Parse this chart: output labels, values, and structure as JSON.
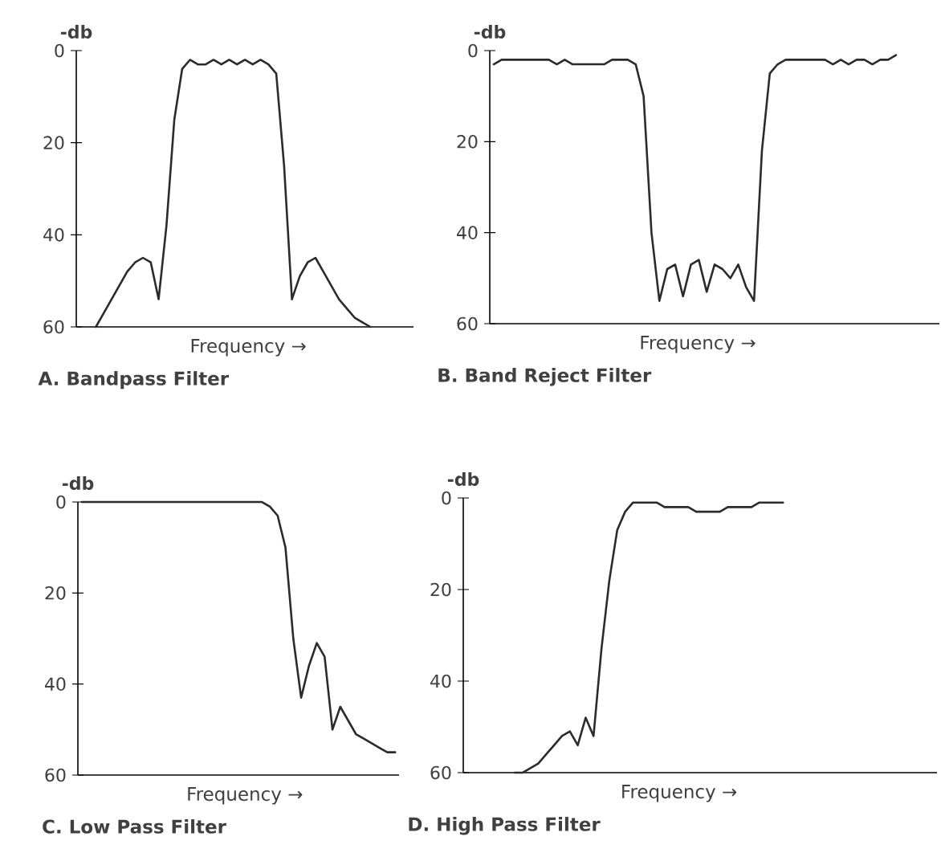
{
  "chart_data": [
    {
      "type": "line",
      "title": "A. Bandpass Filter",
      "xlabel": "Frequency →",
      "ylabel": "-db",
      "ylim": [
        60,
        0
      ],
      "yticks": [
        0,
        20,
        40,
        60
      ],
      "tick_labels": "y",
      "categories": [
        null,
        null,
        null,
        null,
        null,
        null,
        null,
        null,
        null,
        null,
        null,
        null,
        null,
        null,
        null,
        null,
        null,
        null,
        null,
        null,
        null,
        null,
        null,
        null,
        null,
        null,
        null,
        null,
        null,
        null,
        null,
        null,
        null,
        null,
        null,
        null,
        null,
        null,
        null,
        null,
        null,
        null,
        null
      ],
      "series": [
        {
          "color": "#2b2b2b",
          "values": [
            null,
            null,
            60,
            57,
            54,
            51,
            48,
            46,
            45,
            46,
            54,
            38,
            15,
            4,
            2,
            3,
            3,
            2,
            3,
            2,
            3,
            2,
            3,
            2,
            3,
            5,
            25,
            54,
            49,
            46,
            45,
            48,
            51,
            54,
            56,
            58,
            59,
            60,
            null,
            null,
            null,
            null,
            null
          ]
        }
      ]
    },
    {
      "type": "line",
      "title": "B. Band Reject Filter",
      "xlabel": "Frequency →",
      "ylabel": "-db",
      "ylim": [
        60,
        0
      ],
      "yticks": [
        0,
        20,
        40,
        60
      ],
      "tick_labels": "y",
      "categories": [
        null,
        null,
        null,
        null,
        null,
        null,
        null,
        null,
        null,
        null,
        null,
        null,
        null,
        null,
        null,
        null,
        null,
        null,
        null,
        null,
        null,
        null,
        null,
        null,
        null,
        null,
        null,
        null,
        null,
        null,
        null,
        null,
        null,
        null,
        null,
        null,
        null,
        null,
        null,
        null,
        null,
        null,
        null,
        null,
        null,
        null,
        null,
        null,
        null,
        null,
        null,
        null,
        null,
        null,
        null,
        null,
        null
      ],
      "series": [
        {
          "color": "#2b2b2b",
          "values": [
            3,
            2,
            2,
            2,
            2,
            2,
            2,
            2,
            3,
            2,
            3,
            3,
            3,
            3,
            3,
            2,
            2,
            2,
            3,
            10,
            40,
            55,
            48,
            47,
            54,
            47,
            46,
            53,
            47,
            48,
            50,
            47,
            52,
            55,
            22,
            5,
            3,
            2,
            2,
            2,
            2,
            2,
            2,
            3,
            2,
            3,
            2,
            2,
            3,
            2,
            2,
            1,
            null,
            null,
            null,
            null,
            null
          ]
        }
      ]
    },
    {
      "type": "line",
      "title": "C. Low Pass Filter",
      "xlabel": "Frequency →",
      "ylabel": "-db",
      "ylim": [
        60,
        0
      ],
      "yticks": [
        0,
        20,
        40,
        60
      ],
      "tick_labels": "y",
      "categories": [
        null,
        null,
        null,
        null,
        null,
        null,
        null,
        null,
        null,
        null,
        null,
        null,
        null,
        null,
        null,
        null,
        null,
        null,
        null,
        null,
        null,
        null,
        null,
        null,
        null,
        null,
        null,
        null,
        null,
        null,
        null,
        null,
        null,
        null,
        null,
        null,
        null,
        null,
        null,
        null,
        null
      ],
      "series": [
        {
          "color": "#2b2b2b",
          "values": [
            0,
            0,
            0,
            0,
            0,
            0,
            0,
            0,
            0,
            0,
            0,
            0,
            0,
            0,
            0,
            0,
            0,
            0,
            0,
            0,
            0,
            0,
            0,
            0,
            1,
            3,
            10,
            30,
            43,
            36,
            31,
            34,
            50,
            45,
            48,
            51,
            52,
            53,
            54,
            55,
            55
          ]
        }
      ]
    },
    {
      "type": "line",
      "title": "D. High Pass Filter",
      "xlabel": "Frequency →",
      "ylabel": "-db",
      "ylim": [
        60,
        0
      ],
      "yticks": [
        0,
        20,
        40,
        60
      ],
      "tick_labels": "y",
      "categories": [
        null,
        null,
        null,
        null,
        null,
        null,
        null,
        null,
        null,
        null,
        null,
        null,
        null,
        null,
        null,
        null,
        null,
        null,
        null,
        null,
        null,
        null,
        null,
        null,
        null,
        null,
        null,
        null,
        null,
        null,
        null,
        null,
        null,
        null,
        null,
        null,
        null,
        null,
        null,
        null,
        null,
        null,
        null,
        null,
        null,
        null,
        null,
        null,
        null,
        null,
        null,
        null,
        null,
        null,
        null,
        null,
        null,
        null,
        null,
        null
      ],
      "series": [
        {
          "color": "#2b2b2b",
          "values": [
            null,
            null,
            null,
            null,
            null,
            null,
            60,
            60,
            59,
            58,
            56,
            54,
            52,
            51,
            54,
            48,
            52,
            33,
            18,
            7,
            3,
            1,
            1,
            1,
            1,
            2,
            2,
            2,
            2,
            3,
            3,
            3,
            3,
            2,
            2,
            2,
            2,
            1,
            1,
            1,
            1,
            null,
            null,
            null,
            null,
            null,
            null,
            null,
            null,
            null,
            null,
            null,
            null,
            null,
            null,
            null,
            null,
            null,
            null,
            null
          ]
        }
      ]
    }
  ]
}
